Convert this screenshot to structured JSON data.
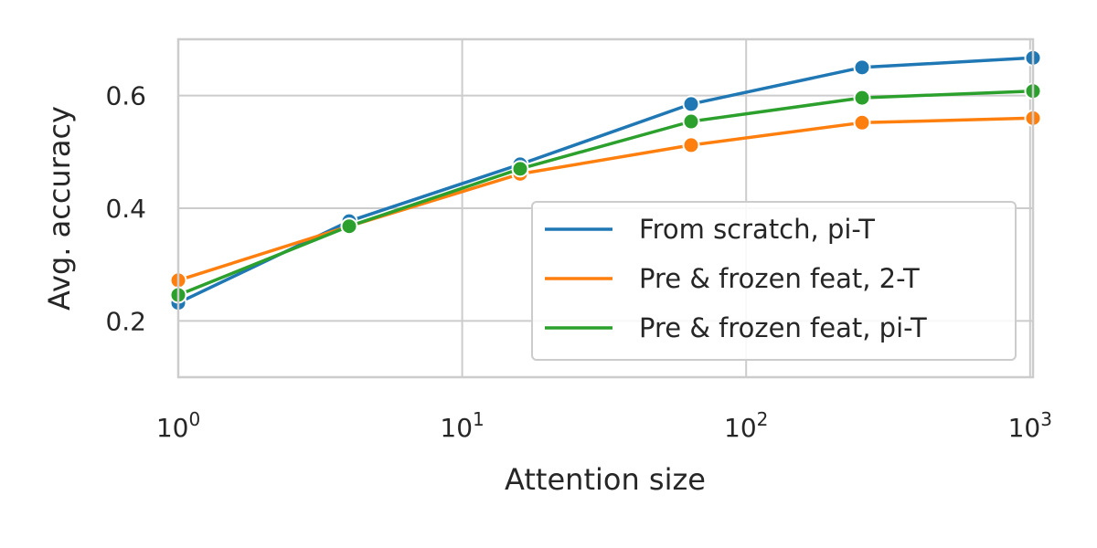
{
  "chart_data": {
    "type": "line",
    "xscale": "log",
    "xlabel": "Attention size",
    "ylabel": "Avg. accuracy",
    "xlim": [
      1,
      1024
    ],
    "ylim": [
      0.1,
      0.7
    ],
    "x": [
      1,
      4,
      16,
      64,
      256,
      1024
    ],
    "x_ticks": [
      {
        "value": 1,
        "base": "10",
        "exp": "0"
      },
      {
        "value": 10,
        "base": "10",
        "exp": "1"
      },
      {
        "value": 100,
        "base": "10",
        "exp": "2"
      },
      {
        "value": 1000,
        "base": "10",
        "exp": "3"
      }
    ],
    "y_ticks": [
      {
        "value": 0.2,
        "label": "0.2"
      },
      {
        "value": 0.4,
        "label": "0.4"
      },
      {
        "value": 0.6,
        "label": "0.6"
      }
    ],
    "grid": true,
    "legend_position": "lower-right",
    "series": [
      {
        "name": "From scratch, pi-T",
        "color": "#1f77b4",
        "values": [
          0.232,
          0.377,
          0.478,
          0.585,
          0.65,
          0.667
        ]
      },
      {
        "name": "Pre & frozen feat, 2-T",
        "color": "#ff7f0e",
        "values": [
          0.272,
          0.368,
          0.461,
          0.512,
          0.552,
          0.56
        ]
      },
      {
        "name": "Pre & frozen feat, pi-T",
        "color": "#2ca02c",
        "values": [
          0.246,
          0.368,
          0.47,
          0.554,
          0.596,
          0.608
        ]
      }
    ]
  }
}
